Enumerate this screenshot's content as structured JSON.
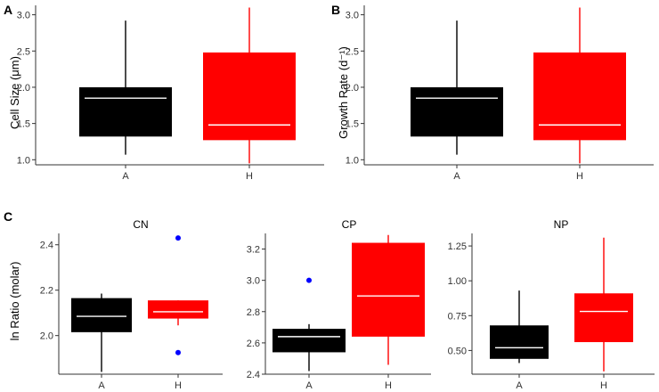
{
  "chart_data": [
    {
      "id": "A",
      "type": "boxplot",
      "panel_label": "A",
      "ylabel": "Cell Size (μm)",
      "categories": [
        "A",
        "H"
      ],
      "yticks": [
        "1.0",
        "1.5",
        "2.0",
        "2.5",
        "3.0"
      ],
      "ylim": [
        0.93,
        3.13
      ],
      "boxes": [
        {
          "category": "A",
          "fill": "#000000",
          "median_color": "#ffffff",
          "min": 1.07,
          "q1": 1.32,
          "median": 1.85,
          "q3": 2.0,
          "max": 2.92,
          "outliers": []
        },
        {
          "category": "H",
          "fill": "#ff0000",
          "median_color": "#ffffff",
          "min": 0.95,
          "q1": 1.27,
          "median": 1.48,
          "q3": 2.48,
          "max": 3.1,
          "outliers": []
        }
      ]
    },
    {
      "id": "B",
      "type": "boxplot",
      "panel_label": "B",
      "ylabel": "Growth Rate (d⁻¹)",
      "categories": [
        "A",
        "H"
      ],
      "yticks": [
        "1.0",
        "1.5",
        "2.0",
        "2.5",
        "3.0"
      ],
      "ylim": [
        0.93,
        3.13
      ],
      "boxes": [
        {
          "category": "A",
          "fill": "#000000",
          "median_color": "#ffffff",
          "min": 1.07,
          "q1": 1.32,
          "median": 1.85,
          "q3": 2.0,
          "max": 2.92,
          "outliers": []
        },
        {
          "category": "H",
          "fill": "#ff0000",
          "median_color": "#ffffff",
          "min": 0.95,
          "q1": 1.27,
          "median": 1.48,
          "q3": 2.48,
          "max": 3.1,
          "outliers": []
        }
      ]
    },
    {
      "id": "CN",
      "type": "boxplot",
      "panel_label": "C",
      "title": "CN",
      "ylabel": "ln Ratio (molar)",
      "categories": [
        "A",
        "H"
      ],
      "yticks": [
        "2.0",
        "2.2",
        "2.4"
      ],
      "ylim": [
        1.83,
        2.45
      ],
      "boxes": [
        {
          "category": "A",
          "fill": "#000000",
          "median_color": "#ffffff",
          "min": 1.84,
          "q1": 2.015,
          "median": 2.085,
          "q3": 2.165,
          "max": 2.185,
          "outliers": []
        },
        {
          "category": "H",
          "fill": "#ff0000",
          "median_color": "#ffffff",
          "min": 2.045,
          "q1": 2.075,
          "median": 2.105,
          "q3": 2.155,
          "max": 2.155,
          "outliers": [
            2.43,
            1.925
          ]
        }
      ]
    },
    {
      "id": "CP",
      "type": "boxplot",
      "title": "CP",
      "categories": [
        "A",
        "H"
      ],
      "yticks": [
        "2.4",
        "2.6",
        "2.8",
        "3.0",
        "3.2"
      ],
      "ylim": [
        2.4,
        3.3
      ],
      "boxes": [
        {
          "category": "A",
          "fill": "#000000",
          "median_color": "#ffffff",
          "min": 2.42,
          "q1": 2.54,
          "median": 2.64,
          "q3": 2.69,
          "max": 2.72,
          "outliers": [
            3.0
          ]
        },
        {
          "category": "H",
          "fill": "#ff0000",
          "median_color": "#ffffff",
          "min": 2.46,
          "q1": 2.64,
          "median": 2.9,
          "q3": 3.24,
          "max": 3.29,
          "outliers": []
        }
      ]
    },
    {
      "id": "NP",
      "type": "boxplot",
      "title": "NP",
      "categories": [
        "A",
        "H"
      ],
      "yticks": [
        "0.50",
        "0.75",
        "1.00",
        "1.25"
      ],
      "ylim": [
        0.33,
        1.34
      ],
      "boxes": [
        {
          "category": "A",
          "fill": "#000000",
          "median_color": "#ffffff",
          "min": 0.41,
          "q1": 0.44,
          "median": 0.52,
          "q3": 0.68,
          "max": 0.93,
          "outliers": []
        },
        {
          "category": "H",
          "fill": "#ff0000",
          "median_color": "#ffffff",
          "min": 0.35,
          "q1": 0.56,
          "median": 0.78,
          "q3": 0.91,
          "max": 1.31,
          "outliers": []
        }
      ]
    }
  ],
  "colors": {
    "outlier": "#0000ff",
    "axis": "#333333"
  }
}
